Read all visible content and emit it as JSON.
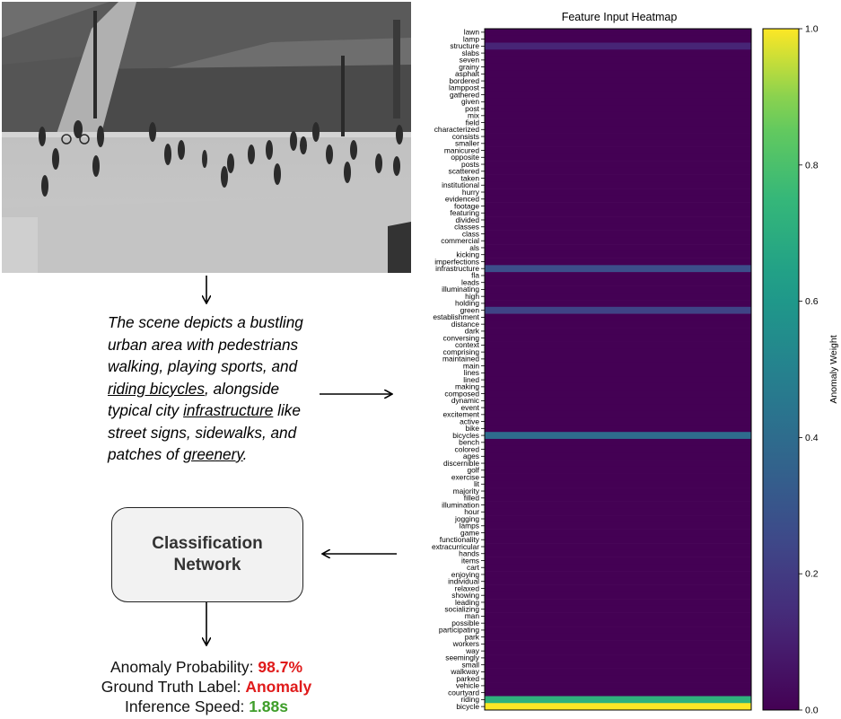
{
  "description": {
    "segments": [
      {
        "text": "The scene depicts a bustling urban area with pedestrians walking, playing sports, and ",
        "underline": false
      },
      {
        "text": "riding bicycles",
        "underline": true
      },
      {
        "text": ", alongside typical city ",
        "underline": false
      },
      {
        "text": "infrastructure",
        "underline": true
      },
      {
        "text": " like street signs, sidewalks, and patches of ",
        "underline": false
      },
      {
        "text": "greenery",
        "underline": true
      },
      {
        "text": ".",
        "underline": false
      }
    ]
  },
  "network": {
    "label": "Classification Network"
  },
  "results": {
    "anomaly_prob_label": "Anomaly Probability:",
    "anomaly_prob_value": "98.7%",
    "gt_label": "Ground Truth Label:",
    "gt_value": "Anomaly",
    "speed_label": "Inference Speed:",
    "speed_value": "1.88s",
    "colors": {
      "prob": "#e01b1b",
      "gt": "#e01b1b",
      "speed": "#3f9e2a"
    }
  },
  "chart_data": {
    "type": "heatmap",
    "title": "Feature Input Heatmap",
    "colorbar_label": "Anomaly Weight",
    "colorbar_ticks": [
      "0.0",
      "0.2",
      "0.4",
      "0.6",
      "0.8",
      "1.0"
    ],
    "vrange": [
      0.0,
      1.0
    ],
    "colormap": "viridis",
    "rows": [
      "lawn",
      "lamp",
      "structure",
      "slabs",
      "seven",
      "grainy",
      "asphalt",
      "bordered",
      "lamppost",
      "gathered",
      "given",
      "post",
      "mix",
      "field",
      "characterized",
      "consists",
      "smaller",
      "manicured",
      "opposite",
      "posts",
      "scattered",
      "taken",
      "institutional",
      "hurry",
      "evidenced",
      "footage",
      "featuring",
      "divided",
      "classes",
      "class",
      "commercial",
      "als",
      "kicking",
      "imperfections",
      "infrastructure",
      "fla",
      "leads",
      "illuminating",
      "high",
      "holding",
      "green",
      "establishment",
      "distance",
      "dark",
      "conversing",
      "context",
      "comprising",
      "maintained",
      "main",
      "lines",
      "lined",
      "making",
      "composed",
      "dynamic",
      "event",
      "excitement",
      "active",
      "bike",
      "bicycles",
      "bench",
      "colored",
      "ages",
      "discernible",
      "golf",
      "exercise",
      "lit",
      "majority",
      "filled",
      "illumination",
      "hour",
      "jogging",
      "lamps",
      "game",
      "functionality",
      "extracurricular",
      "hands",
      "items",
      "cart",
      "enjoying",
      "individual",
      "relaxed",
      "showing",
      "leading",
      "socializing",
      "man",
      "possible",
      "participating",
      "park",
      "workers",
      "way",
      "seemingly",
      "small",
      "walkway",
      "parked",
      "vehicle",
      "courtyard",
      "riding",
      "bicycle"
    ],
    "highlights": {
      "structure": 0.12,
      "infrastructure": 0.27,
      "green": 0.23,
      "bicycles": 0.4,
      "riding": 0.72,
      "bicycle": 1.0
    }
  }
}
